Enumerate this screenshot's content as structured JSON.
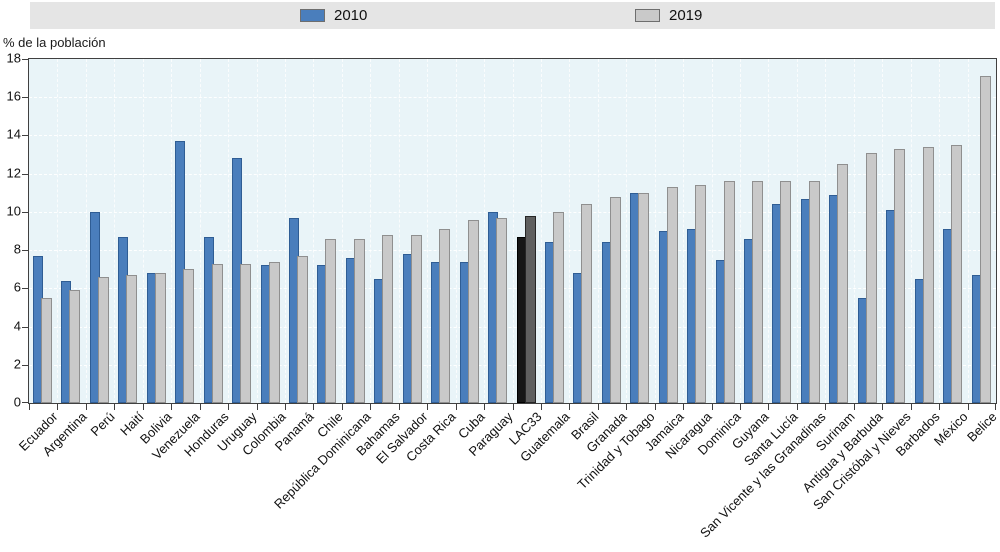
{
  "figure": {
    "y_axis_title": "% de la población"
  },
  "legend": {
    "items": [
      {
        "label": "2010",
        "color": "#4a7ebc"
      },
      {
        "label": "2019",
        "color": "#c9c9c9"
      }
    ]
  },
  "chart_data": {
    "type": "bar",
    "title": "",
    "xlabel": "",
    "ylabel": "% de la población",
    "ylim": [
      0,
      18
    ],
    "ytick_step": 2,
    "grid": true,
    "legend_position": "top",
    "categories": [
      "Ecuador",
      "Argentina",
      "Perú",
      "Haití",
      "Bolivia",
      "Venezuela",
      "Honduras",
      "Uruguay",
      "Colombia",
      "Panamá",
      "Chile",
      "República Dominicana",
      "Bahamas",
      "El Salvador",
      "Costa Rica",
      "Cuba",
      "Paraguay",
      "LAC33",
      "Guatemala",
      "Brasil",
      "Granada",
      "Trinidad y Tobago",
      "Jamaica",
      "Nicaragua",
      "Dominica",
      "Guyana",
      "Santa Lucía",
      "San Vicente y las Granadinas",
      "Surinam",
      "Antigua y Barbuda",
      "San Cristóbal y Nieves",
      "Barbados",
      "México",
      "Belice"
    ],
    "series": [
      {
        "name": "2010",
        "color": "#4a7ebc",
        "values": [
          7.7,
          6.4,
          10.0,
          8.7,
          6.8,
          13.7,
          8.7,
          12.8,
          7.2,
          9.7,
          7.2,
          7.6,
          6.5,
          7.8,
          7.4,
          7.4,
          10.0,
          8.7,
          8.4,
          6.8,
          8.4,
          11.0,
          9.0,
          9.1,
          7.5,
          8.6,
          10.4,
          10.7,
          10.9,
          5.5,
          10.1,
          6.5,
          9.1,
          6.7
        ]
      },
      {
        "name": "2019",
        "color": "#c9c9c9",
        "values": [
          5.5,
          5.9,
          6.6,
          6.7,
          6.8,
          7.0,
          7.3,
          7.3,
          7.4,
          7.7,
          8.6,
          8.6,
          8.8,
          8.8,
          9.1,
          9.6,
          9.7,
          9.8,
          10.0,
          10.4,
          10.8,
          11.0,
          11.3,
          11.4,
          11.6,
          11.6,
          11.6,
          11.6,
          12.5,
          13.1,
          13.3,
          13.4,
          13.5,
          17.1
        ]
      }
    ],
    "highlight": {
      "category": "LAC33",
      "colors": {
        "2010": "#161616",
        "2019": "#5f5f5f"
      }
    }
  }
}
